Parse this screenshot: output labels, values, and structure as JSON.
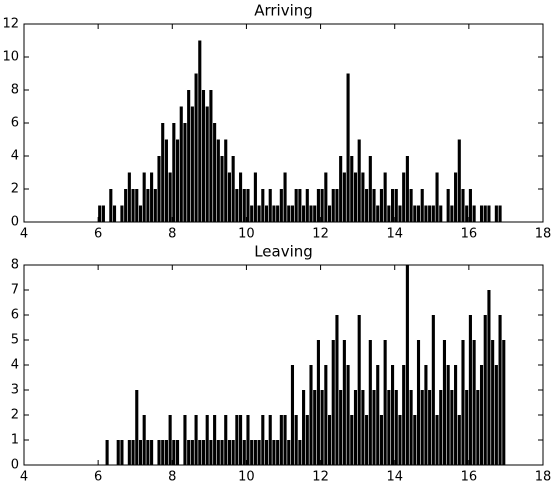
{
  "chart_data": [
    {
      "type": "histogram",
      "title": "Arriving",
      "color": "#000000",
      "bins": [
        5,
        5.1,
        5.2,
        5.3,
        5.4,
        5.5,
        5.6,
        5.7,
        5.8,
        5.9,
        6,
        6.1,
        6.2,
        6.3,
        6.4,
        6.5,
        6.6,
        6.7,
        6.8,
        6.9,
        7,
        7.1,
        7.2,
        7.3,
        7.4,
        7.5,
        7.6,
        7.7,
        7.8,
        7.9,
        8,
        8.1,
        8.2,
        8.3,
        8.4,
        8.5,
        8.6,
        8.7,
        8.8,
        8.9,
        9,
        9.1,
        9.2,
        9.3,
        9.4,
        9.5,
        9.6,
        9.7,
        9.8,
        9.9,
        10,
        10.1,
        10.2,
        10.3,
        10.4,
        10.5,
        10.6,
        10.7,
        10.8,
        10.9,
        11,
        11.1,
        11.2,
        11.3,
        11.4,
        11.5,
        11.6,
        11.7,
        11.8,
        11.9,
        12,
        12.1,
        12.2,
        12.3,
        12.4,
        12.5,
        12.6,
        12.7,
        12.8,
        12.9,
        13,
        13.1,
        13.2,
        13.3,
        13.4,
        13.5,
        13.6,
        13.7,
        13.8,
        13.9,
        14,
        14.1,
        14.2,
        14.3,
        14.4,
        14.5,
        14.6,
        14.7,
        14.8,
        14.9,
        15,
        15.1,
        15.2,
        15.3,
        15.4,
        15.5,
        15.6,
        15.7,
        15.8,
        15.9,
        16,
        16.1,
        16.2,
        16.3,
        16.4,
        16.5,
        16.6,
        16.7,
        16.8,
        16.9,
        17
      ],
      "values": [
        0,
        0,
        0,
        0,
        0,
        0,
        0,
        0,
        0,
        0,
        1,
        1,
        0,
        2,
        1,
        0,
        1,
        2,
        3,
        2,
        2,
        1,
        3,
        2,
        3,
        2,
        4,
        6,
        5,
        3,
        6,
        5,
        7,
        6,
        8,
        7,
        9,
        11,
        8,
        7,
        8,
        6,
        5,
        4,
        5,
        3,
        4,
        2,
        3,
        2,
        2,
        1,
        3,
        1,
        2,
        1,
        2,
        1,
        1,
        2,
        3,
        1,
        1,
        2,
        2,
        1,
        2,
        1,
        1,
        2,
        2,
        3,
        1,
        2,
        2,
        4,
        3,
        9,
        4,
        3,
        5,
        3,
        2,
        4,
        2,
        1,
        2,
        3,
        1,
        2,
        2,
        1,
        3,
        4,
        2,
        1,
        1,
        2,
        1,
        1,
        1,
        3,
        1,
        0,
        2,
        1,
        3,
        5,
        2,
        1,
        2,
        1,
        0,
        1,
        1,
        1,
        0,
        1,
        1,
        0
      ],
      "xlim": [
        4,
        18
      ],
      "xticks": [
        4,
        6,
        8,
        10,
        12,
        14,
        16,
        18
      ],
      "ylim": [
        0,
        12
      ],
      "yticks": [
        0,
        2,
        4,
        6,
        8,
        10,
        12
      ]
    },
    {
      "type": "histogram",
      "title": "Leaving",
      "color": "#000000",
      "bins": [
        5,
        5.1,
        5.2,
        5.3,
        5.4,
        5.5,
        5.6,
        5.7,
        5.8,
        5.9,
        6,
        6.1,
        6.2,
        6.3,
        6.4,
        6.5,
        6.6,
        6.7,
        6.8,
        6.9,
        7,
        7.1,
        7.2,
        7.3,
        7.4,
        7.5,
        7.6,
        7.7,
        7.8,
        7.9,
        8,
        8.1,
        8.2,
        8.3,
        8.4,
        8.5,
        8.6,
        8.7,
        8.8,
        8.9,
        9,
        9.1,
        9.2,
        9.3,
        9.4,
        9.5,
        9.6,
        9.7,
        9.8,
        9.9,
        10,
        10.1,
        10.2,
        10.3,
        10.4,
        10.5,
        10.6,
        10.7,
        10.8,
        10.9,
        11,
        11.1,
        11.2,
        11.3,
        11.4,
        11.5,
        11.6,
        11.7,
        11.8,
        11.9,
        12,
        12.1,
        12.2,
        12.3,
        12.4,
        12.5,
        12.6,
        12.7,
        12.8,
        12.9,
        13,
        13.1,
        13.2,
        13.3,
        13.4,
        13.5,
        13.6,
        13.7,
        13.8,
        13.9,
        14,
        14.1,
        14.2,
        14.3,
        14.4,
        14.5,
        14.6,
        14.7,
        14.8,
        14.9,
        15,
        15.1,
        15.2,
        15.3,
        15.4,
        15.5,
        15.6,
        15.7,
        15.8,
        15.9,
        16,
        16.1,
        16.2,
        16.3,
        16.4,
        16.5,
        16.6,
        16.7,
        16.8,
        16.9,
        17
      ],
      "values": [
        0,
        0,
        0,
        0,
        0,
        0,
        0,
        0,
        0,
        0,
        0,
        0,
        1,
        0,
        0,
        1,
        1,
        0,
        1,
        1,
        3,
        1,
        2,
        1,
        1,
        0,
        1,
        1,
        1,
        2,
        1,
        1,
        0,
        2,
        1,
        1,
        2,
        1,
        1,
        2,
        1,
        2,
        1,
        1,
        2,
        1,
        1,
        2,
        2,
        1,
        2,
        1,
        1,
        1,
        2,
        1,
        2,
        1,
        1,
        2,
        2,
        1,
        4,
        2,
        1,
        3,
        2,
        4,
        3,
        5,
        3,
        4,
        2,
        5,
        6,
        3,
        5,
        4,
        2,
        3,
        6,
        3,
        2,
        5,
        3,
        4,
        2,
        5,
        3,
        4,
        3,
        2,
        4,
        8,
        3,
        2,
        5,
        3,
        4,
        3,
        6,
        2,
        3,
        5,
        4,
        3,
        4,
        2,
        5,
        3,
        6,
        5,
        3,
        4,
        6,
        7,
        5,
        4,
        6,
        5
      ],
      "xlim": [
        4,
        18
      ],
      "xticks": [
        4,
        6,
        8,
        10,
        12,
        14,
        16,
        18
      ],
      "ylim": [
        0,
        8
      ],
      "yticks": [
        0,
        1,
        2,
        3,
        4,
        5,
        6,
        7,
        8
      ]
    }
  ]
}
